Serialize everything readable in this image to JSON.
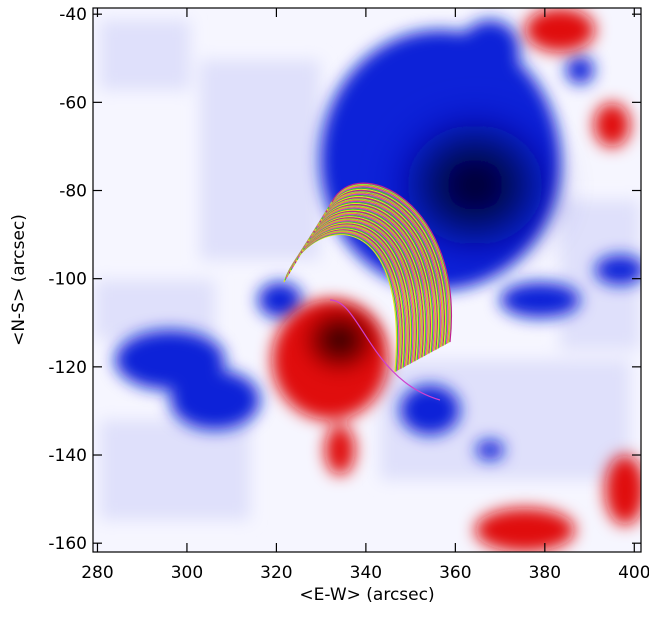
{
  "chart_data": {
    "type": "image",
    "x_label": "<E-W> (arcsec)",
    "y_label": "<N-S> (arcsec)",
    "xlim": [
      279,
      401.5
    ],
    "ylim": [
      -162,
      -38.6
    ],
    "xticks": [
      280,
      300,
      320,
      340,
      360,
      380,
      400
    ],
    "yticks": [
      -40,
      -60,
      -80,
      -100,
      -120,
      -140,
      -160
    ]
  }
}
